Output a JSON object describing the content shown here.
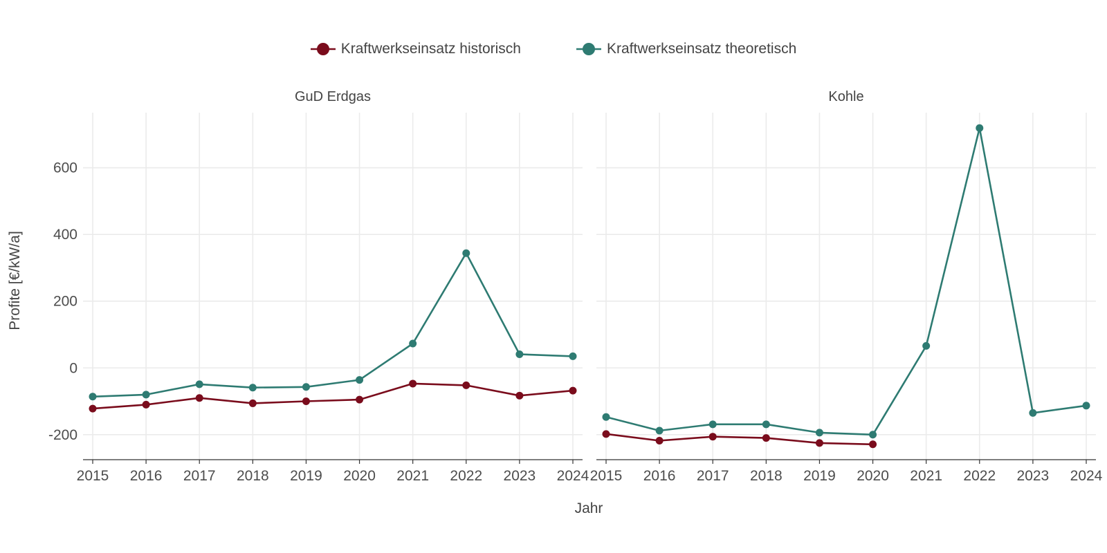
{
  "legend": {
    "historic_label": "Kraftwerkseinsatz historisch",
    "theoretic_label": "Kraftwerkseinsatz theoretisch"
  },
  "axes": {
    "xlabel": "Jahr",
    "ylabel": "Profite [€/kW/a]"
  },
  "colors": {
    "historic": "#7a0c1c",
    "theoretic": "#2e7b72",
    "grid": "#ebebeb",
    "axis": "#333333"
  },
  "chart_data": [
    {
      "type": "line",
      "title": "GuD Erdgas",
      "x": [
        2015,
        2016,
        2017,
        2018,
        2019,
        2020,
        2021,
        2022,
        2023,
        2024
      ],
      "ylim": [
        -275,
        765
      ],
      "yticks": [
        -200,
        0,
        200,
        400,
        600
      ],
      "grid": true,
      "series": [
        {
          "name": "Kraftwerkseinsatz historisch",
          "values": [
            -122,
            -110,
            -90,
            -106,
            -100,
            -95,
            -47,
            -52,
            -83,
            -68
          ]
        },
        {
          "name": "Kraftwerkseinsatz theoretisch",
          "values": [
            -86,
            -80,
            -49,
            -59,
            -57,
            -36,
            73,
            344,
            41,
            35
          ]
        }
      ]
    },
    {
      "type": "line",
      "title": "Kohle",
      "x": [
        2015,
        2016,
        2017,
        2018,
        2019,
        2020,
        2021,
        2022,
        2023,
        2024
      ],
      "ylim": [
        -275,
        765
      ],
      "yticks": [
        -200,
        0,
        200,
        400,
        600
      ],
      "grid": true,
      "series": [
        {
          "name": "Kraftwerkseinsatz historisch",
          "values": [
            -198,
            -218,
            -206,
            -210,
            -225,
            -229,
            null,
            null,
            null,
            null
          ]
        },
        {
          "name": "Kraftwerkseinsatz theoretisch",
          "values": [
            -147,
            -188,
            -169,
            -169,
            -194,
            -200,
            66,
            719,
            -135,
            -113
          ]
        }
      ]
    }
  ]
}
